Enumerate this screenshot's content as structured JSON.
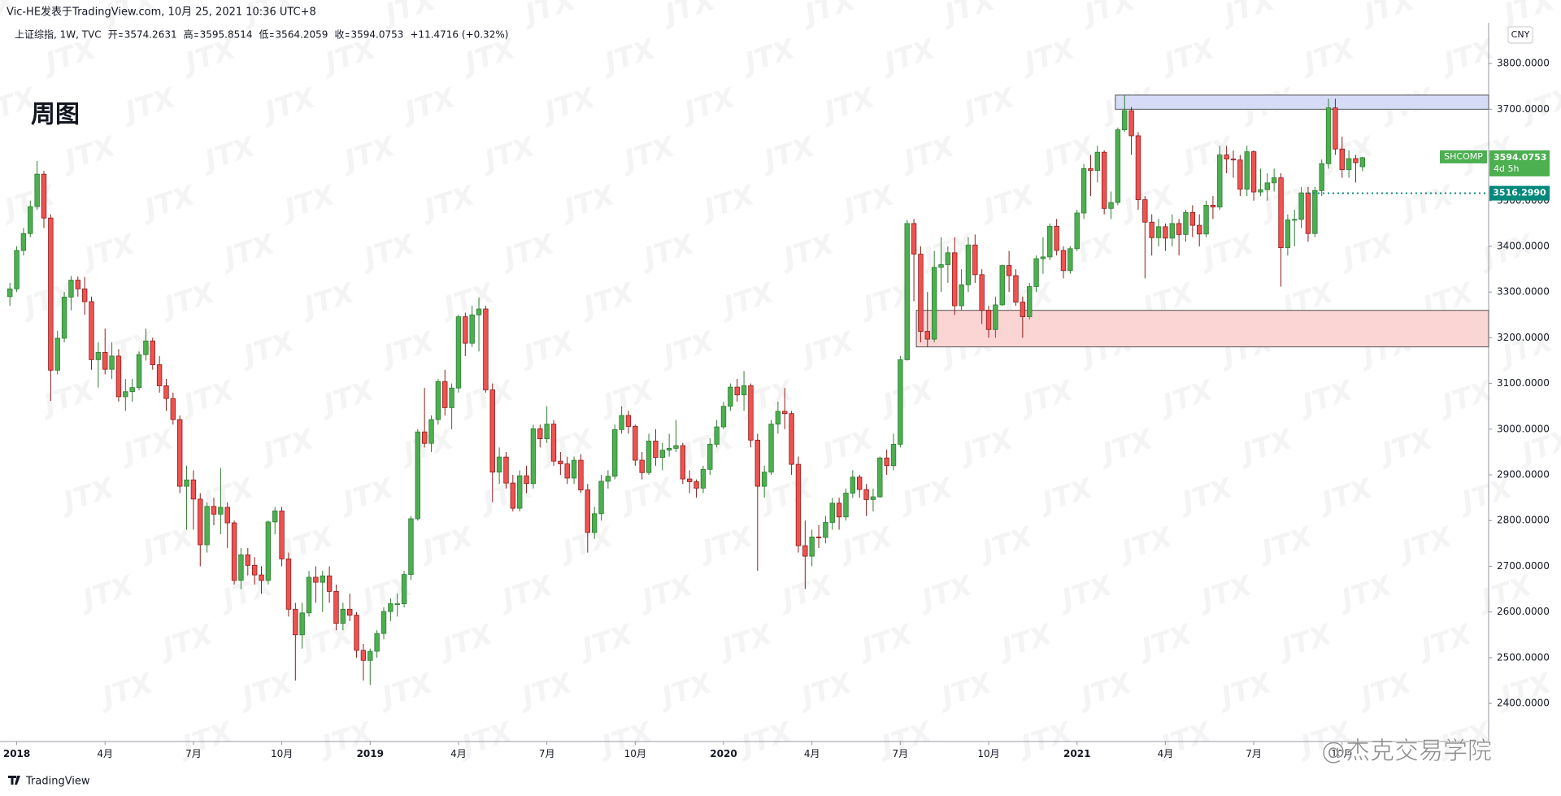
{
  "chart_data": {
    "type": "candlestick",
    "header": "Vic-HE发表于TradingView.com, 10月 25, 2021 10:36 UTC+8",
    "symbol": "上证综指, 1W, TVC",
    "legend_values": [
      {
        "label": "开",
        "value": 3574.2631
      },
      {
        "label": "高",
        "value": 3595.8514
      },
      {
        "label": "低",
        "value": 3564.2059
      },
      {
        "label": "收",
        "value": 3594.0753
      }
    ],
    "change": "+11.4716 (+0.32%)",
    "title": "周图",
    "currency": "CNY",
    "footer": "TradingView",
    "watermark": "JTX",
    "watermark2": "@杰克交易学院",
    "up_color": "#4caf50",
    "down_color": "#ef5350",
    "grid": false,
    "ylim": [
      2316,
      3878
    ],
    "yticks": [
      {
        "value": 2400,
        "label": "2400.0000"
      },
      {
        "value": 2500,
        "label": "2500.0000"
      },
      {
        "value": 2600,
        "label": "2600.0000"
      },
      {
        "value": 2700,
        "label": "2700.0000"
      },
      {
        "value": 2800,
        "label": "2800.0000"
      },
      {
        "value": 2900,
        "label": "2900.0000"
      },
      {
        "value": 3000,
        "label": "3000.0000"
      },
      {
        "value": 3100,
        "label": "3100.0000"
      },
      {
        "value": 3200,
        "label": "3200.0000"
      },
      {
        "value": 3300,
        "label": "3300.0000"
      },
      {
        "value": 3400,
        "label": "3400.0000"
      },
      {
        "value": 3500,
        "label": "3500.0000"
      },
      {
        "value": 3600,
        "label": "3600.0000"
      },
      {
        "value": 3700,
        "label": "3700.0000"
      },
      {
        "value": 3800,
        "label": "3800.0000"
      }
    ],
    "last": {
      "name": "SHCOMP",
      "value": 3594.0753,
      "countdown": "4d 5h",
      "color": "#4caf50"
    },
    "hline": {
      "value": 3516.299,
      "label": "3516.2990",
      "color": "#00897b"
    },
    "zones": [
      {
        "ylim": [
          3700,
          3731
        ],
        "color": "#d6dcf8",
        "border": "#555"
      },
      {
        "ylim": [
          3180,
          3260
        ],
        "color": "#fbd4d4",
        "border": "#555"
      }
    ],
    "categories": [
      null,
      "2018",
      null,
      null,
      null,
      null,
      null,
      null,
      null,
      null,
      null,
      null,
      null,
      null,
      "4月",
      null,
      null,
      null,
      null,
      null,
      null,
      null,
      null,
      null,
      null,
      null,
      null,
      "7月",
      null,
      null,
      null,
      null,
      null,
      null,
      null,
      null,
      null,
      null,
      null,
      null,
      "10月",
      null,
      null,
      null,
      null,
      null,
      null,
      null,
      null,
      null,
      null,
      null,
      null,
      "2019",
      null,
      null,
      null,
      null,
      null,
      null,
      null,
      null,
      null,
      null,
      null,
      null,
      "4月",
      null,
      null,
      null,
      null,
      null,
      null,
      null,
      null,
      null,
      null,
      null,
      null,
      "7月",
      null,
      null,
      null,
      null,
      null,
      null,
      null,
      null,
      null,
      null,
      null,
      null,
      "10月",
      null,
      null,
      null,
      null,
      null,
      null,
      null,
      null,
      null,
      null,
      null,
      null,
      "2020",
      null,
      null,
      null,
      null,
      null,
      null,
      null,
      null,
      null,
      null,
      null,
      null,
      "4月",
      null,
      null,
      null,
      null,
      null,
      null,
      null,
      null,
      null,
      null,
      null,
      null,
      "7月",
      null,
      null,
      null,
      null,
      null,
      null,
      null,
      null,
      null,
      null,
      null,
      null,
      "10月",
      null,
      null,
      null,
      null,
      null,
      null,
      null,
      null,
      null,
      null,
      null,
      null,
      "2021",
      null,
      null,
      null,
      null,
      null,
      null,
      null,
      null,
      null,
      null,
      null,
      null,
      "4月",
      null,
      null,
      null,
      null,
      null,
      null,
      null,
      null,
      null,
      null,
      null,
      null,
      "7月",
      null,
      null,
      null,
      null,
      null,
      null,
      null,
      null,
      null,
      null,
      null,
      null,
      "10月",
      null,
      null,
      null
    ],
    "ohlc": [
      [
        3290,
        3320,
        3270,
        3307
      ],
      [
        3307,
        3400,
        3300,
        3391
      ],
      [
        3391,
        3440,
        3380,
        3428
      ],
      [
        3428,
        3500,
        3420,
        3487
      ],
      [
        3487,
        3587,
        3480,
        3558
      ],
      [
        3558,
        3565,
        3440,
        3462
      ],
      [
        3462,
        3470,
        3062,
        3129
      ],
      [
        3129,
        3215,
        3120,
        3199
      ],
      [
        3199,
        3300,
        3190,
        3289
      ],
      [
        3289,
        3335,
        3260,
        3326
      ],
      [
        3326,
        3334,
        3290,
        3307
      ],
      [
        3307,
        3333,
        3250,
        3279
      ],
      [
        3279,
        3290,
        3130,
        3152
      ],
      [
        3152,
        3190,
        3091,
        3168
      ],
      [
        3168,
        3220,
        3120,
        3131
      ],
      [
        3131,
        3190,
        3110,
        3160
      ],
      [
        3160,
        3175,
        3060,
        3071
      ],
      [
        3071,
        3110,
        3040,
        3082
      ],
      [
        3082,
        3110,
        3060,
        3091
      ],
      [
        3091,
        3170,
        3085,
        3163
      ],
      [
        3163,
        3220,
        3150,
        3193
      ],
      [
        3193,
        3200,
        3130,
        3141
      ],
      [
        3141,
        3160,
        3080,
        3095
      ],
      [
        3095,
        3110,
        3040,
        3067
      ],
      [
        3067,
        3080,
        3010,
        3021
      ],
      [
        3021,
        3030,
        2860,
        2875
      ],
      [
        2875,
        2920,
        2780,
        2889
      ],
      [
        2889,
        2910,
        2780,
        2847
      ],
      [
        2847,
        2860,
        2700,
        2747
      ],
      [
        2747,
        2840,
        2730,
        2831
      ],
      [
        2831,
        2850,
        2790,
        2814
      ],
      [
        2814,
        2915,
        2770,
        2829
      ],
      [
        2829,
        2840,
        2740,
        2795
      ],
      [
        2795,
        2800,
        2660,
        2669
      ],
      [
        2669,
        2740,
        2650,
        2725
      ],
      [
        2725,
        2740,
        2680,
        2702
      ],
      [
        2702,
        2720,
        2660,
        2681
      ],
      [
        2681,
        2700,
        2640,
        2669
      ],
      [
        2669,
        2800,
        2660,
        2797
      ],
      [
        2797,
        2830,
        2770,
        2821
      ],
      [
        2821,
        2830,
        2700,
        2716
      ],
      [
        2716,
        2730,
        2590,
        2606
      ],
      [
        2606,
        2620,
        2450,
        2550
      ],
      [
        2550,
        2620,
        2520,
        2598
      ],
      [
        2598,
        2690,
        2590,
        2676
      ],
      [
        2676,
        2700,
        2620,
        2665
      ],
      [
        2665,
        2690,
        2600,
        2679
      ],
      [
        2679,
        2700,
        2620,
        2645
      ],
      [
        2645,
        2660,
        2560,
        2575
      ],
      [
        2575,
        2620,
        2560,
        2606
      ],
      [
        2606,
        2640,
        2580,
        2593
      ],
      [
        2593,
        2600,
        2500,
        2516
      ],
      [
        2516,
        2530,
        2450,
        2494
      ],
      [
        2494,
        2520,
        2440,
        2514
      ],
      [
        2514,
        2560,
        2500,
        2553
      ],
      [
        2553,
        2610,
        2540,
        2601
      ],
      [
        2601,
        2630,
        2580,
        2618
      ],
      [
        2618,
        2640,
        2590,
        2618
      ],
      [
        2618,
        2690,
        2610,
        2682
      ],
      [
        2682,
        2810,
        2670,
        2804
      ],
      [
        2804,
        3000,
        2800,
        2994
      ],
      [
        2994,
        3090,
        2960,
        2969
      ],
      [
        2969,
        3030,
        2950,
        3021
      ],
      [
        3021,
        3110,
        3010,
        3104
      ],
      [
        3104,
        3130,
        3030,
        3047
      ],
      [
        3047,
        3100,
        3000,
        3090
      ],
      [
        3090,
        3250,
        3080,
        3246
      ],
      [
        3246,
        3255,
        3160,
        3188
      ],
      [
        3188,
        3270,
        3180,
        3250
      ],
      [
        3250,
        3288,
        3170,
        3263
      ],
      [
        3263,
        3270,
        3080,
        3086
      ],
      [
        3086,
        3100,
        2840,
        2906
      ],
      [
        2906,
        2960,
        2880,
        2939
      ],
      [
        2939,
        2950,
        2870,
        2882
      ],
      [
        2882,
        2900,
        2820,
        2827
      ],
      [
        2827,
        2910,
        2820,
        2898
      ],
      [
        2898,
        2920,
        2860,
        2881
      ],
      [
        2881,
        3010,
        2870,
        3001
      ],
      [
        3001,
        3010,
        2960,
        2979
      ],
      [
        2979,
        3050,
        2970,
        3011
      ],
      [
        3011,
        3020,
        2920,
        2930
      ],
      [
        2930,
        2950,
        2900,
        2924
      ],
      [
        2924,
        2940,
        2880,
        2893
      ],
      [
        2893,
        2940,
        2880,
        2932
      ],
      [
        2932,
        2945,
        2860,
        2867
      ],
      [
        2867,
        2880,
        2730,
        2774
      ],
      [
        2774,
        2830,
        2760,
        2815
      ],
      [
        2815,
        2900,
        2800,
        2886
      ],
      [
        2886,
        2910,
        2870,
        2897
      ],
      [
        2897,
        3010,
        2890,
        2999
      ],
      [
        2999,
        3050,
        2990,
        3030
      ],
      [
        3030,
        3040,
        2990,
        3006
      ],
      [
        3006,
        3010,
        2920,
        2932
      ],
      [
        2932,
        2950,
        2890,
        2905
      ],
      [
        2905,
        2990,
        2900,
        2974
      ],
      [
        2974,
        3000,
        2920,
        2938
      ],
      [
        2938,
        2970,
        2910,
        2954
      ],
      [
        2954,
        2990,
        2940,
        2958
      ],
      [
        2958,
        3020,
        2950,
        2964
      ],
      [
        2964,
        2970,
        2880,
        2891
      ],
      [
        2891,
        2910,
        2860,
        2885
      ],
      [
        2885,
        2890,
        2850,
        2871
      ],
      [
        2871,
        2920,
        2860,
        2912
      ],
      [
        2912,
        2980,
        2900,
        2967
      ],
      [
        2967,
        3020,
        2960,
        3005
      ],
      [
        3005,
        3060,
        3000,
        3050
      ],
      [
        3050,
        3100,
        3040,
        3092
      ],
      [
        3092,
        3110,
        3060,
        3075
      ],
      [
        3075,
        3127,
        3040,
        3095
      ],
      [
        3095,
        3100,
        2960,
        2976
      ],
      [
        2976,
        2990,
        2690,
        2875
      ],
      [
        2875,
        2920,
        2850,
        2906
      ],
      [
        2906,
        3020,
        2900,
        3011
      ],
      [
        3011,
        3060,
        2990,
        3039
      ],
      [
        3039,
        3090,
        3000,
        3034
      ],
      [
        3034,
        3040,
        2900,
        2923
      ],
      [
        2923,
        2940,
        2730,
        2745
      ],
      [
        2745,
        2800,
        2650,
        2722
      ],
      [
        2722,
        2780,
        2700,
        2764
      ],
      [
        2764,
        2790,
        2740,
        2763
      ],
      [
        2763,
        2810,
        2750,
        2796
      ],
      [
        2796,
        2850,
        2780,
        2838
      ],
      [
        2838,
        2850,
        2780,
        2808
      ],
      [
        2808,
        2870,
        2800,
        2860
      ],
      [
        2860,
        2910,
        2850,
        2895
      ],
      [
        2895,
        2900,
        2850,
        2868
      ],
      [
        2868,
        2880,
        2810,
        2846
      ],
      [
        2846,
        2870,
        2820,
        2852
      ],
      [
        2852,
        2940,
        2850,
        2937
      ],
      [
        2937,
        2955,
        2900,
        2920
      ],
      [
        2920,
        2990,
        2910,
        2967
      ],
      [
        2967,
        3160,
        2960,
        3152
      ],
      [
        3152,
        3458,
        3150,
        3450
      ],
      [
        3450,
        3460,
        3280,
        3383
      ],
      [
        3383,
        3400,
        3190,
        3214
      ],
      [
        3214,
        3300,
        3180,
        3197
      ],
      [
        3197,
        3390,
        3190,
        3354
      ],
      [
        3354,
        3420,
        3300,
        3360
      ],
      [
        3360,
        3400,
        3320,
        3386
      ],
      [
        3386,
        3420,
        3250,
        3270
      ],
      [
        3270,
        3350,
        3260,
        3316
      ],
      [
        3316,
        3420,
        3300,
        3403
      ],
      [
        3403,
        3426,
        3320,
        3338
      ],
      [
        3338,
        3350,
        3230,
        3260
      ],
      [
        3260,
        3270,
        3200,
        3218
      ],
      [
        3218,
        3290,
        3200,
        3272
      ],
      [
        3272,
        3360,
        3270,
        3358
      ],
      [
        3358,
        3390,
        3300,
        3336
      ],
      [
        3336,
        3350,
        3270,
        3278
      ],
      [
        3278,
        3290,
        3200,
        3246
      ],
      [
        3246,
        3320,
        3240,
        3312
      ],
      [
        3312,
        3380,
        3300,
        3373
      ],
      [
        3373,
        3420,
        3340,
        3377
      ],
      [
        3377,
        3450,
        3370,
        3444
      ],
      [
        3444,
        3460,
        3380,
        3391
      ],
      [
        3391,
        3400,
        3330,
        3347
      ],
      [
        3347,
        3400,
        3340,
        3395
      ],
      [
        3395,
        3480,
        3390,
        3473
      ],
      [
        3473,
        3580,
        3460,
        3570
      ],
      [
        3570,
        3600,
        3510,
        3566
      ],
      [
        3566,
        3620,
        3540,
        3606
      ],
      [
        3606,
        3610,
        3470,
        3483
      ],
      [
        3483,
        3520,
        3460,
        3496
      ],
      [
        3496,
        3660,
        3490,
        3655
      ],
      [
        3655,
        3731,
        3650,
        3697
      ],
      [
        3697,
        3705,
        3600,
        3642
      ],
      [
        3642,
        3650,
        3480,
        3502
      ],
      [
        3502,
        3510,
        3330,
        3453
      ],
      [
        3453,
        3470,
        3380,
        3419
      ],
      [
        3419,
        3460,
        3400,
        3443
      ],
      [
        3443,
        3450,
        3390,
        3418
      ],
      [
        3418,
        3470,
        3400,
        3450
      ],
      [
        3450,
        3460,
        3380,
        3426
      ],
      [
        3426,
        3480,
        3410,
        3474
      ],
      [
        3474,
        3490,
        3420,
        3446
      ],
      [
        3446,
        3470,
        3400,
        3427
      ],
      [
        3427,
        3500,
        3420,
        3490
      ],
      [
        3490,
        3510,
        3460,
        3486
      ],
      [
        3486,
        3620,
        3480,
        3600
      ],
      [
        3600,
        3620,
        3560,
        3591
      ],
      [
        3591,
        3610,
        3550,
        3589
      ],
      [
        3589,
        3600,
        3510,
        3525
      ],
      [
        3525,
        3620,
        3510,
        3607
      ],
      [
        3607,
        3610,
        3500,
        3519
      ],
      [
        3519,
        3570,
        3510,
        3524
      ],
      [
        3524,
        3560,
        3500,
        3539
      ],
      [
        3539,
        3570,
        3520,
        3550
      ],
      [
        3550,
        3560,
        3312,
        3397
      ],
      [
        3397,
        3470,
        3380,
        3458
      ],
      [
        3458,
        3480,
        3400,
        3459
      ],
      [
        3459,
        3530,
        3440,
        3517
      ],
      [
        3517,
        3530,
        3410,
        3428
      ],
      [
        3428,
        3530,
        3420,
        3522
      ],
      [
        3522,
        3590,
        3510,
        3581
      ],
      [
        3581,
        3723,
        3570,
        3703
      ],
      [
        3703,
        3723,
        3600,
        3613
      ],
      [
        3613,
        3640,
        3550,
        3568
      ],
      [
        3568,
        3610,
        3550,
        3592
      ],
      [
        3592,
        3600,
        3540,
        3583
      ],
      [
        3574.2631,
        3595.8514,
        3564.2059,
        3594.0753
      ]
    ]
  }
}
